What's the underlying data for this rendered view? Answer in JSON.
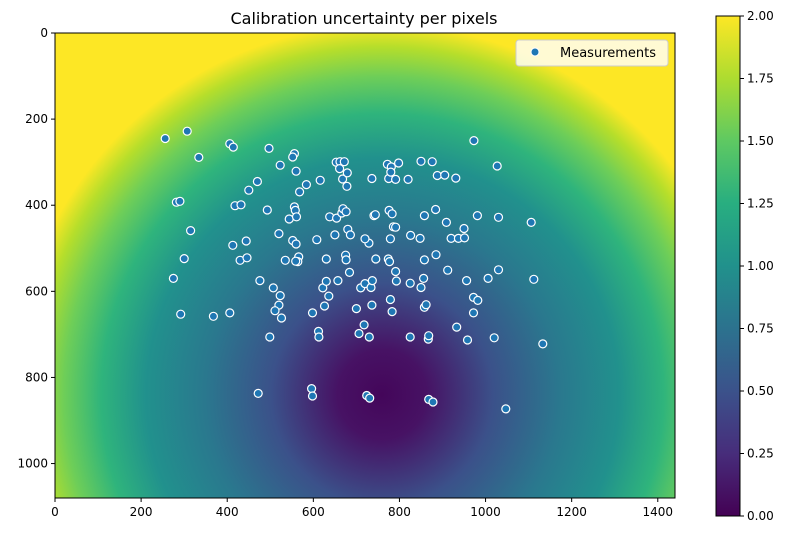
{
  "chart_data": {
    "type": "heatmap",
    "title": "Calibration uncertainty per pixels",
    "xlabel": "",
    "ylabel": "",
    "xlim": [
      0,
      1440
    ],
    "ylim": [
      1080,
      0
    ],
    "x_ticks": [
      0,
      200,
      400,
      600,
      800,
      1000,
      1200,
      1400
    ],
    "y_ticks": [
      0,
      200,
      400,
      600,
      800,
      1000
    ],
    "heatmap": {
      "description": "uncertainty grows radially from a minimum near the lower-center of the image",
      "min_location": [
        760,
        840
      ],
      "colormap": "viridis",
      "vmin": 0.0,
      "vmax": 2.0
    },
    "colorbar": {
      "ticks": [
        "0.00",
        "0.25",
        "0.50",
        "0.75",
        "1.00",
        "1.25",
        "1.50",
        "1.75",
        "2.00"
      ],
      "range": [
        0.0,
        2.0
      ]
    },
    "legend": {
      "position": "top-right",
      "entries": [
        "Measurements"
      ]
    },
    "series": [
      {
        "name": "Measurements",
        "type": "scatter",
        "points": [
          [
            256,
            245
          ],
          [
            307,
            228
          ],
          [
            334,
            289
          ],
          [
            282,
            393
          ],
          [
            290,
            391
          ],
          [
            315,
            459
          ],
          [
            300,
            524
          ],
          [
            275,
            570
          ],
          [
            292,
            653
          ],
          [
            368,
            658
          ],
          [
            406,
            257
          ],
          [
            414,
            265
          ],
          [
            418,
            401
          ],
          [
            432,
            399
          ],
          [
            450,
            365
          ],
          [
            470,
            345
          ],
          [
            497,
            268
          ],
          [
            493,
            411
          ],
          [
            523,
            307
          ],
          [
            556,
            280
          ],
          [
            560,
            321
          ],
          [
            552,
            288
          ],
          [
            568,
            369
          ],
          [
            584,
            352
          ],
          [
            413,
            493
          ],
          [
            430,
            528
          ],
          [
            444,
            483
          ],
          [
            446,
            522
          ],
          [
            476,
            575
          ],
          [
            520,
            466
          ],
          [
            544,
            432
          ],
          [
            556,
            404
          ],
          [
            558,
            412
          ],
          [
            561,
            427
          ],
          [
            552,
            482
          ],
          [
            560,
            490
          ],
          [
            566,
            520
          ],
          [
            564,
            531
          ],
          [
            559,
            530
          ],
          [
            535,
            528
          ],
          [
            507,
            592
          ],
          [
            523,
            610
          ],
          [
            520,
            632
          ],
          [
            526,
            662
          ],
          [
            511,
            645
          ],
          [
            499,
            706
          ],
          [
            406,
            650
          ],
          [
            472,
            837
          ],
          [
            596,
            826
          ],
          [
            598,
            843
          ],
          [
            616,
            342
          ],
          [
            608,
            480
          ],
          [
            630,
            525
          ],
          [
            653,
            300
          ],
          [
            662,
            299
          ],
          [
            672,
            299
          ],
          [
            661,
            315
          ],
          [
            668,
            339
          ],
          [
            678,
            356
          ],
          [
            679,
            325
          ],
          [
            638,
            427
          ],
          [
            654,
            430
          ],
          [
            666,
            418
          ],
          [
            669,
            408
          ],
          [
            676,
            415
          ],
          [
            650,
            469
          ],
          [
            675,
            516
          ],
          [
            676,
            527
          ],
          [
            680,
            456
          ],
          [
            686,
            469
          ],
          [
            622,
            592
          ],
          [
            630,
            577
          ],
          [
            636,
            611
          ],
          [
            626,
            634
          ],
          [
            657,
            575
          ],
          [
            684,
            556
          ],
          [
            598,
            650
          ],
          [
            612,
            693
          ],
          [
            613,
            706
          ],
          [
            700,
            640
          ],
          [
            710,
            592
          ],
          [
            720,
            582
          ],
          [
            718,
            678
          ],
          [
            706,
            698
          ],
          [
            730,
            706
          ],
          [
            734,
            591
          ],
          [
            736,
            632
          ],
          [
            737,
            575
          ],
          [
            745,
            525
          ],
          [
            729,
            488
          ],
          [
            720,
            478
          ],
          [
            741,
            424
          ],
          [
            736,
            338
          ],
          [
            772,
            305
          ],
          [
            781,
            311
          ],
          [
            775,
            338
          ],
          [
            780,
            323
          ],
          [
            791,
            340
          ],
          [
            798,
            302
          ],
          [
            776,
            412
          ],
          [
            783,
            420
          ],
          [
            779,
            478
          ],
          [
            786,
            450
          ],
          [
            791,
            451
          ],
          [
            774,
            525
          ],
          [
            777,
            531
          ],
          [
            793,
            576
          ],
          [
            791,
            554
          ],
          [
            779,
            619
          ],
          [
            783,
            647
          ],
          [
            724,
            842
          ],
          [
            731,
            848
          ],
          [
            820,
            340
          ],
          [
            826,
            470
          ],
          [
            825,
            581
          ],
          [
            825,
            706
          ],
          [
            850,
            298
          ],
          [
            858,
            424
          ],
          [
            848,
            477
          ],
          [
            858,
            527
          ],
          [
            850,
            591
          ],
          [
            858,
            637
          ],
          [
            862,
            631
          ],
          [
            856,
            570
          ],
          [
            867,
            711
          ],
          [
            868,
            703
          ],
          [
            876,
            299
          ],
          [
            888,
            331
          ],
          [
            884,
            410
          ],
          [
            885,
            515
          ],
          [
            905,
            330
          ],
          [
            909,
            440
          ],
          [
            912,
            551
          ],
          [
            920,
            477
          ],
          [
            931,
            337
          ],
          [
            937,
            477
          ],
          [
            950,
            454
          ],
          [
            951,
            476
          ],
          [
            956,
            575
          ],
          [
            972,
            614
          ],
          [
            972,
            650
          ],
          [
            982,
            621
          ],
          [
            958,
            713
          ],
          [
            933,
            683
          ],
          [
            973,
            250
          ],
          [
            981,
            424
          ],
          [
            1006,
            570
          ],
          [
            1020,
            708
          ],
          [
            1027,
            309
          ],
          [
            1030,
            428
          ],
          [
            1030,
            550
          ],
          [
            1047,
            873
          ],
          [
            1106,
            440
          ],
          [
            1112,
            572
          ],
          [
            1133,
            722
          ],
          [
            868,
            851
          ],
          [
            878,
            857
          ],
          [
            744,
            422
          ]
        ]
      }
    ]
  }
}
